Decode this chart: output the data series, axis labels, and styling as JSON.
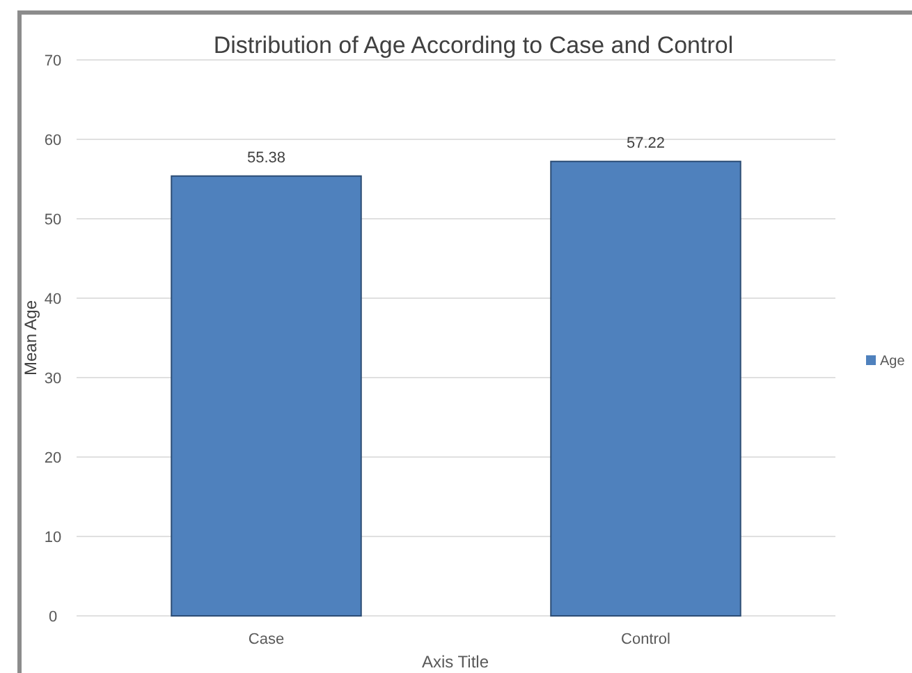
{
  "chart_data": {
    "type": "bar",
    "title": "Distribution of Age According to Case and Control",
    "xlabel": "Axis Title",
    "ylabel": "Mean Age",
    "categories": [
      "Case",
      "Control"
    ],
    "series": [
      {
        "name": "Age",
        "color": "#4f81bd",
        "values": [
          55.38,
          57.22
        ]
      }
    ],
    "ylim": [
      0,
      70
    ],
    "yticks": [
      0,
      10,
      20,
      30,
      40,
      50,
      60,
      70
    ],
    "grid": "y",
    "legend": "right",
    "data_labels": true
  }
}
